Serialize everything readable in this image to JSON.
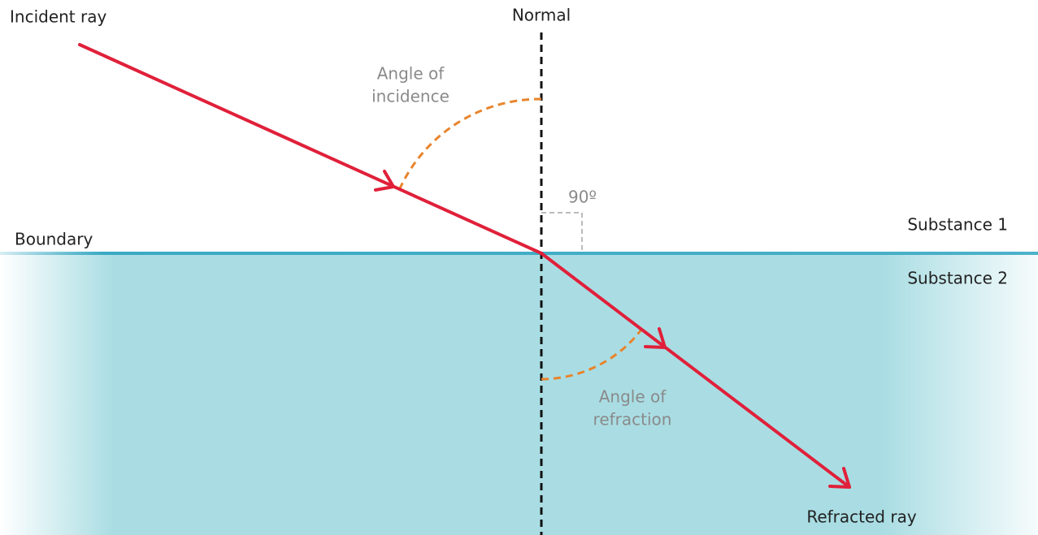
{
  "labels": {
    "incident_ray": "Incident ray",
    "normal": "Normal",
    "angle_of_incidence": [
      "Angle of",
      "incidence"
    ],
    "right_angle": "90º",
    "substance_1": "Substance 1",
    "boundary": "Boundary",
    "substance_2": "Substance 2",
    "angle_of_refraction": [
      "Angle of",
      "refraction"
    ],
    "refracted_ray": "Refracted ray"
  }
}
